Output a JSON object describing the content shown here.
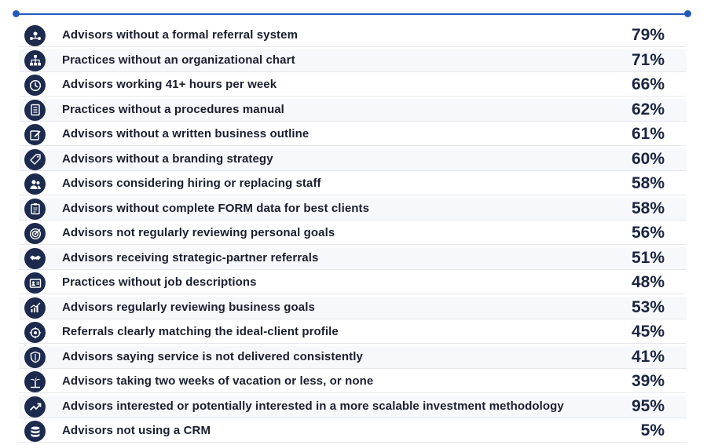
{
  "chart_data": {
    "type": "table",
    "rows": [
      {
        "label": "Advisors without a formal referral system",
        "value": "79%",
        "icon": "network-people-icon"
      },
      {
        "label": "Practices without an organizational chart",
        "value": "71%",
        "icon": "org-chart-icon"
      },
      {
        "label": "Advisors working 41+ hours per week",
        "value": "66%",
        "icon": "clock-icon"
      },
      {
        "label": "Practices without a procedures manual",
        "value": "62%",
        "icon": "manual-icon"
      },
      {
        "label": "Advisors without a written business outline",
        "value": "61%",
        "icon": "edit-icon"
      },
      {
        "label": "Advisors without a branding strategy",
        "value": "60%",
        "icon": "tag-icon"
      },
      {
        "label": "Advisors considering hiring or replacing staff",
        "value": "58%",
        "icon": "staff-icon"
      },
      {
        "label": "Advisors without complete FORM data for best clients",
        "value": "58%",
        "icon": "clipboard-icon"
      },
      {
        "label": "Advisors not regularly reviewing personal goals",
        "value": "56%",
        "icon": "target-icon"
      },
      {
        "label": "Advisors receiving strategic-partner referrals",
        "value": "51%",
        "icon": "handshake-icon"
      },
      {
        "label": "Practices without job descriptions",
        "value": "48%",
        "icon": "id-card-icon"
      },
      {
        "label": "Advisors regularly reviewing business goals",
        "value": "53%",
        "icon": "growth-chart-icon"
      },
      {
        "label": "Referrals clearly matching the ideal-client profile",
        "value": "45%",
        "icon": "crosshair-icon"
      },
      {
        "label": "Advisors saying service is not delivered consistently",
        "value": "41%",
        "icon": "shield-icon"
      },
      {
        "label": "Advisors taking two weeks of vacation or less, or none",
        "value": "39%",
        "icon": "palm-tree-icon"
      },
      {
        "label": "Advisors interested or potentially interested in a more scalable investment methodology",
        "value": "95%",
        "icon": "trend-up-icon"
      },
      {
        "label": "Advisors not using a CRM",
        "value": "5%",
        "icon": "database-icon"
      }
    ]
  },
  "colors": {
    "accent": "#2459b8",
    "icon_bg": "#1c2a4d",
    "text": "#1a1f2e"
  }
}
